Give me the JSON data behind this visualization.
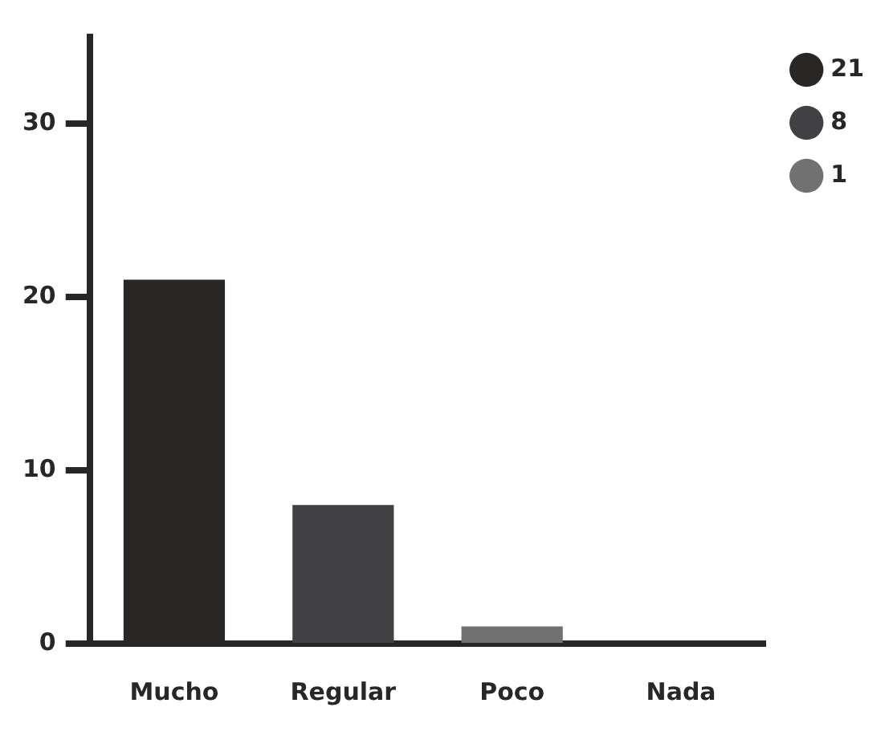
{
  "chart_data": {
    "type": "bar",
    "categories": [
      "Mucho",
      "Regular",
      "Poco",
      "Nada"
    ],
    "stacked": true,
    "series": [
      {
        "name": "21",
        "color": "#282726",
        "values": [
          21,
          null,
          null,
          null
        ]
      },
      {
        "name": "8",
        "color": "#414143",
        "values": [
          null,
          8,
          null,
          null
        ]
      },
      {
        "name": "1",
        "color": "#717171",
        "values": [
          null,
          null,
          1,
          0
        ]
      }
    ],
    "ylim": [
      0,
      35
    ],
    "yticks": [
      0,
      10,
      20,
      30
    ],
    "grid": false,
    "legend": "top right"
  }
}
